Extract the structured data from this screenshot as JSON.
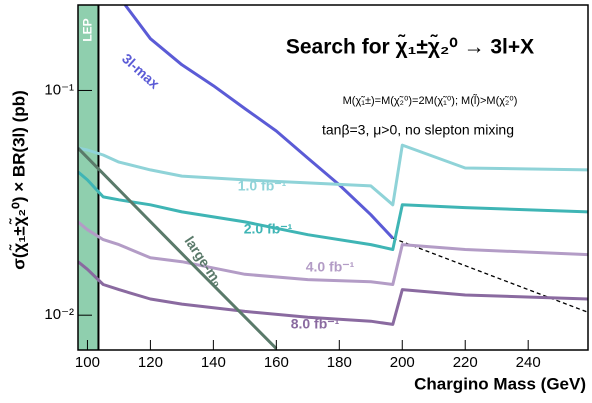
{
  "chart_data": {
    "type": "line",
    "title": "Search for χ̃₁±χ̃₂⁰ → 3l+X",
    "annotations": [
      "M(χ̃₁±)=M(χ̃₂⁰)=2M(χ̃₁⁰); M(l̃)>M(χ̃₂⁰)",
      "tanβ=3, μ>0, no slepton mixing"
    ],
    "band_label": "LEP",
    "band_color": "#8fcfae",
    "lep_limit": 103.5,
    "x_label": "Chargino Mass (GeV)",
    "y_label": "σ(χ̃₁±χ̃₂⁰) × BR(3l) (pb)",
    "log_y": true,
    "xlim": [
      97,
      259
    ],
    "ylim": [
      0.007,
      0.24
    ],
    "xticks": [
      100,
      120,
      140,
      160,
      180,
      200,
      220,
      240
    ],
    "yticks": [
      {
        "value": 0.01,
        "label": "10⁻²"
      },
      {
        "value": 0.1,
        "label": "10⁻¹"
      }
    ],
    "series": [
      {
        "name": "3l-max",
        "color": "#5b5bd6",
        "x": [
          112,
          120,
          130,
          140,
          150,
          160,
          170,
          180,
          190,
          197
        ],
        "values": [
          0.24,
          0.17,
          0.13,
          0.105,
          0.083,
          0.066,
          0.05,
          0.038,
          0.028,
          0.022
        ]
      },
      {
        "color": "#000000",
        "dash": true,
        "x": [
          197,
          259
        ],
        "values": [
          0.022,
          0.0103
        ]
      },
      {
        "name": "1.0 fb⁻¹",
        "color": "#8fd3d8",
        "x": [
          97,
          100,
          105,
          110,
          120,
          130,
          150,
          170,
          190,
          197,
          200,
          220,
          259
        ],
        "values": [
          0.0554,
          0.0543,
          0.0516,
          0.048,
          0.0443,
          0.0416,
          0.04,
          0.0388,
          0.0376,
          0.031,
          0.0571,
          0.0452,
          0.0443
        ]
      },
      {
        "name": "2.0 fb⁻¹",
        "color": "#3fb5b5",
        "x": [
          97,
          100,
          105,
          110,
          120,
          130,
          150,
          170,
          190,
          197,
          200,
          220,
          259
        ],
        "values": [
          0.0434,
          0.04,
          0.0336,
          0.0326,
          0.031,
          0.0288,
          0.026,
          0.0228,
          0.0206,
          0.0196,
          0.031,
          0.0301,
          0.0288
        ]
      },
      {
        "name": "4.0 fb⁻¹",
        "color": "#b39cc6",
        "x": [
          97,
          100,
          105,
          110,
          120,
          130,
          150,
          170,
          190,
          197,
          200,
          220,
          259
        ],
        "values": [
          0.026,
          0.024,
          0.0217,
          0.0206,
          0.018,
          0.0173,
          0.0152,
          0.0144,
          0.0141,
          0.0137,
          0.0206,
          0.0196,
          0.0186
        ]
      },
      {
        "name": "8.0 fb⁻¹",
        "color": "#8a6aa0",
        "x": [
          97,
          100,
          105,
          110,
          120,
          130,
          150,
          170,
          190,
          197,
          200,
          220,
          259
        ],
        "values": [
          0.0173,
          0.016,
          0.0137,
          0.013,
          0.0118,
          0.0112,
          0.0104,
          0.0098,
          0.0094,
          0.0091,
          0.013,
          0.0123,
          0.0118
        ]
      },
      {
        "name": "large-m₀",
        "color": "#5a7a6a",
        "x": [
          97,
          130,
          160
        ],
        "values": [
          0.0554,
          0.0188,
          0.0071
        ]
      }
    ]
  }
}
